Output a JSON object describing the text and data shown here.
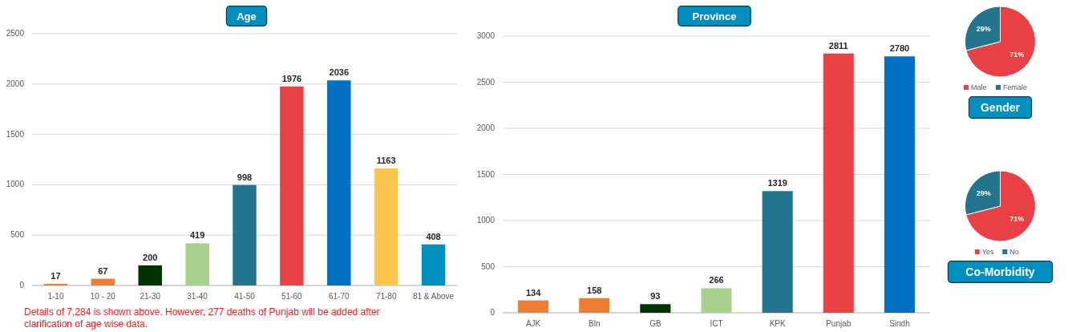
{
  "chart_data": [
    {
      "type": "bar",
      "title": "Age",
      "categories": [
        "1-10",
        "10 - 20",
        "21-30",
        "31-40",
        "41-50",
        "51-60",
        "61-70",
        "71-80",
        "81 & Above"
      ],
      "values": [
        17,
        67,
        200,
        419,
        998,
        1976,
        2036,
        1163,
        408
      ],
      "colors": [
        "#ed7d31",
        "#ed7d31",
        "#003300",
        "#a9d18e",
        "#23758e",
        "#e84045",
        "#0070c0",
        "#ffc44d",
        "#0090c0"
      ],
      "ylim": [
        0,
        2500
      ],
      "yticks": [
        0,
        500,
        1000,
        1500,
        2000,
        2500
      ],
      "grid": "y",
      "data_labels": true,
      "annotations": [
        "Details of 7,284 is shown above. However, 277 deaths of Punjab will be added after clarification of age wise data."
      ]
    },
    {
      "type": "bar",
      "title": "Province",
      "categories": [
        "AJK",
        "Bln",
        "GB",
        "ICT",
        "KPK",
        "Punjab",
        "Sindh"
      ],
      "values": [
        134,
        158,
        93,
        266,
        1319,
        2811,
        2780
      ],
      "colors": [
        "#ed7d31",
        "#ed7d31",
        "#003300",
        "#a9d18e",
        "#23758e",
        "#e84045",
        "#0070c0"
      ],
      "ylim": [
        0,
        3000
      ],
      "yticks": [
        0,
        500,
        1000,
        1500,
        2000,
        2500,
        3000
      ],
      "grid": "y",
      "data_labels": true
    },
    {
      "type": "pie",
      "title": "Gender",
      "categories": [
        "Male",
        "Female"
      ],
      "values": [
        71,
        29
      ],
      "colors": [
        "#e84045",
        "#23758e"
      ],
      "value_labels": [
        "71%",
        "29%"
      ],
      "legend": "bottom"
    },
    {
      "type": "pie",
      "title": "Co-Morbidity",
      "categories": [
        "Yes",
        "No"
      ],
      "values": [
        71,
        29
      ],
      "colors": [
        "#e84045",
        "#23758e"
      ],
      "value_labels": [
        "71%",
        "29%"
      ],
      "legend": "bottom"
    }
  ]
}
